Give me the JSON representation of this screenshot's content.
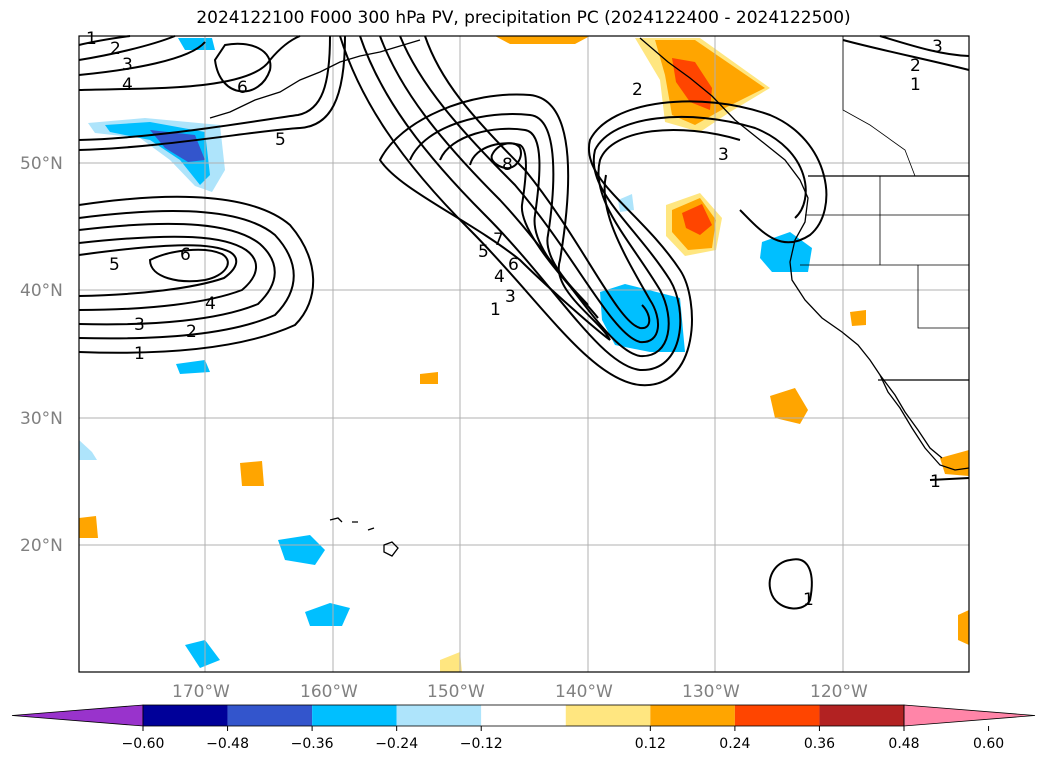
{
  "title": "2024122100 F000 300 hPa PV, precipitation PC (2024122400 - 2024122500)",
  "axes": {
    "lon_labels": [
      "170°W",
      "160°W",
      "150°W",
      "140°W",
      "130°W",
      "120°W"
    ],
    "lat_labels": [
      "50°N",
      "40°N",
      "30°N",
      "20°N"
    ]
  },
  "colorbar": {
    "tick_labels": [
      "−0.60",
      "−0.48",
      "−0.36",
      "−0.24",
      "−0.12",
      "0.12",
      "0.24",
      "0.36",
      "0.48",
      "0.60"
    ],
    "colors": [
      "#9933cc",
      "#000099",
      "#3355cc",
      "#00bfff",
      "#aee4fb",
      "#ffffff",
      "#ffe680",
      "#ffa500",
      "#ff4500",
      "#b22222",
      "#ff85a8"
    ]
  },
  "contour_labels": [
    "1",
    "2",
    "3",
    "4",
    "5",
    "6",
    "7",
    "8"
  ],
  "colors": {
    "blue_light": "#aee4fb",
    "blue": "#00bfff",
    "blue_mid": "#3355cc",
    "yellow": "#ffe680",
    "orange": "#ffa500",
    "red": "#ff4500"
  }
}
